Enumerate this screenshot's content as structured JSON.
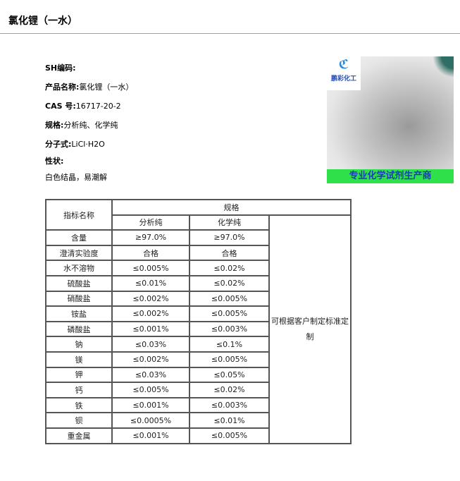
{
  "page_title": "氯化锂（一水）",
  "info": {
    "sh_label": "SH编码:",
    "name_label": "产品名称:",
    "name_value": "氯化锂（一水）",
    "cas_label": "CAS 号:",
    "cas_value": "16717-20-2",
    "spec_label": "规格:",
    "spec_value": "分析纯、化学纯",
    "formula_label": "分子式:",
    "formula_value": "LiCl·H2O",
    "props_label": "性状:",
    "props_value": "白色结晶，易潮解"
  },
  "image": {
    "logo_text": "鹏彩化工",
    "banner_text": "专业化学试剂生产商",
    "banner_color": "#2fe04a"
  },
  "table": {
    "header_name": "指标名称",
    "header_spec": "规格",
    "col_ar": "分析纯",
    "col_cp": "化学纯",
    "note": "可根据客户制定标准定制",
    "rows": [
      [
        "含量",
        "≥97.0%",
        "≥97.0%"
      ],
      [
        "澄清实验度",
        "合格",
        "合格"
      ],
      [
        "水不溶物",
        "≤0.005%",
        "≤0.02%"
      ],
      [
        "硫酸盐",
        "≤0.01%",
        "≤0.02%"
      ],
      [
        "硝酸盐",
        "≤0.002%",
        "≤0.005%"
      ],
      [
        "铵盐",
        "≤0.002%",
        "≤0.005%"
      ],
      [
        "磷酸盐",
        "≤0.001%",
        "≤0.003%"
      ],
      [
        "钠",
        "≤0.03%",
        "≤0.1%"
      ],
      [
        "镁",
        "≤0.002%",
        "≤0.005%"
      ],
      [
        "钾",
        "≤0.03%",
        "≤0.05%"
      ],
      [
        "钙",
        "≤0.005%",
        "≤0.02%"
      ],
      [
        "铁",
        "≤0.001%",
        "≤0.003%"
      ],
      [
        "钡",
        "≤0.0005%",
        "≤0.01%"
      ],
      [
        "重金属",
        "≤0.001%",
        "≤0.005%"
      ]
    ]
  }
}
